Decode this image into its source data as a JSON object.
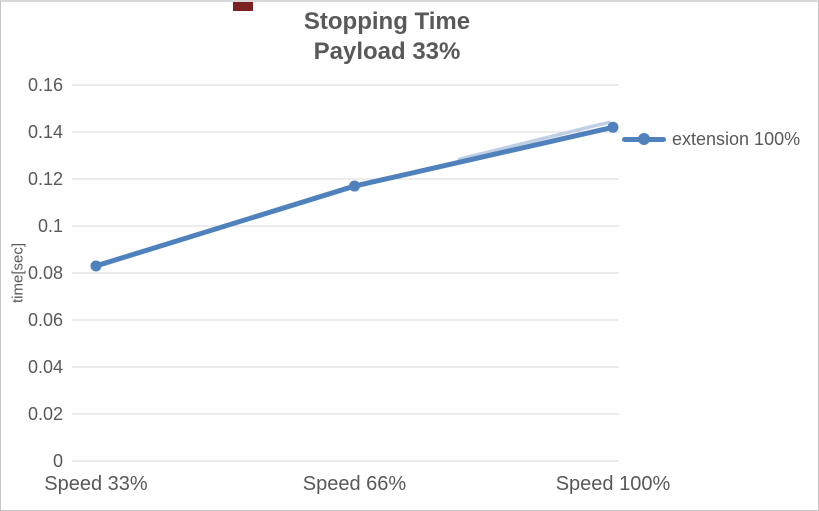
{
  "chart_data": {
    "type": "line",
    "title": "Stopping Time",
    "subtitle": "Payload 33%",
    "ylabel": "time[sec]",
    "xlabel": "",
    "categories": [
      "Speed 33%",
      "Speed 66%",
      "Speed 100%"
    ],
    "series": [
      {
        "name": "extension 100%",
        "values": [
          0.083,
          0.117,
          0.142
        ]
      }
    ],
    "ylim": [
      0,
      0.16
    ],
    "ytick_step": 0.02,
    "ytick_labels": [
      "0",
      "0.02",
      "0.04",
      "0.06",
      "0.08",
      "0.1",
      "0.12",
      "0.14",
      "0.16"
    ],
    "grid": true,
    "legend_position": "right",
    "marker": "circle"
  },
  "legend": {
    "label": "extension 100%"
  },
  "colors": {
    "series": "#4f81bd",
    "series_glow": "#bfd0e5",
    "text": "#595959",
    "gridline": "#d9d9d9",
    "background": "#ffffff",
    "border": "#c6c6c6",
    "top_marker": "#7b2222"
  }
}
